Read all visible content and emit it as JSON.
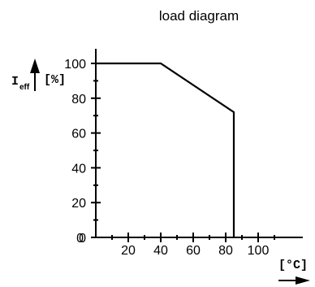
{
  "chart_data": {
    "type": "line",
    "title": "load diagram",
    "ylabel_main": "I",
    "ylabel_sub": "eff",
    "yunit": "[%]",
    "xunit": "[°C]",
    "xlim": [
      0,
      130
    ],
    "ylim": [
      0,
      100
    ],
    "x_ticks": [
      20,
      40,
      60,
      80,
      100
    ],
    "y_ticks": [
      0,
      20,
      40,
      60,
      80,
      100
    ],
    "series": [
      {
        "x": [
          0,
          40,
          85,
          85
        ],
        "y": [
          100,
          100,
          72,
          0
        ]
      }
    ],
    "grid": false
  }
}
